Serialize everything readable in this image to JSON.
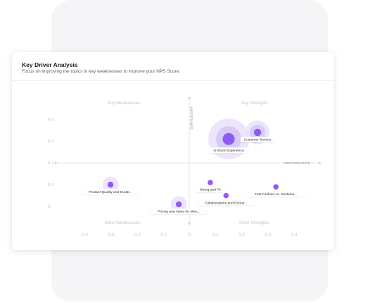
{
  "card": {
    "title": "Key Driver Analysis",
    "subtitle": "Focus on improving the topics in key weaknesses to improve your NPS Score."
  },
  "chart_data": {
    "type": "scatter",
    "title": "",
    "xlabel": "PERFORMANCE",
    "ylabel": "IMPORTANCE",
    "xlim": [
      -0.47,
      0.5
    ],
    "ylim": [
      -0.08,
      0.48
    ],
    "x_ticks": [
      "-0.4",
      "-0.3",
      "-0.2",
      "-0.1",
      "0",
      "0.1",
      "0.2",
      "0.3",
      "0.4"
    ],
    "y_ticks": [
      "0.4",
      "0.3",
      "0.2",
      "0.1",
      "0"
    ],
    "quadrants": {
      "top_left": "Key Weaknesses",
      "top_right": "Key Strengths",
      "bottom_left": "Other Weaknesses",
      "bottom_right": "Other Strengths"
    },
    "grid": false,
    "marker_color": "#8e5cf2",
    "halo_color": "#e6dcfb",
    "points": [
      {
        "label": "Customer Service",
        "x": 0.26,
        "y": 0.34,
        "size": 2
      },
      {
        "label": "In-Store Experience",
        "x": 0.15,
        "y": 0.31,
        "size": 3
      },
      {
        "label": "Product Quality and Durab...",
        "x": -0.3,
        "y": 0.1,
        "size": 1
      },
      {
        "label": "Sizing and Fit",
        "x": 0.08,
        "y": 0.11,
        "size": 0
      },
      {
        "label": "Fast Fashion vs. Sustaina...",
        "x": 0.33,
        "y": 0.09,
        "size": 0
      },
      {
        "label": "Collaborations and Exclus...",
        "x": 0.14,
        "y": 0.05,
        "size": 0
      },
      {
        "label": "Pricing and Value for Mon...",
        "x": -0.04,
        "y": 0.01,
        "size": 1
      }
    ]
  }
}
